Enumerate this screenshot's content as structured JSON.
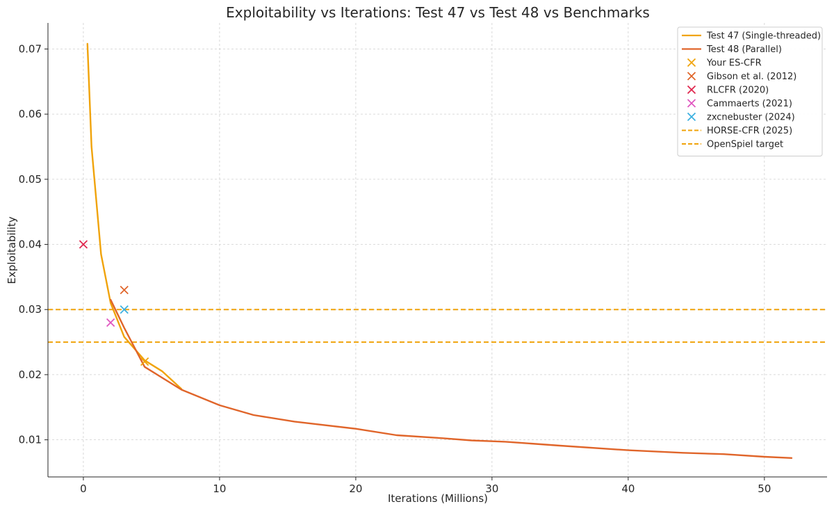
{
  "chart_data": {
    "type": "line",
    "title": "Exploitability vs Iterations: Test 47 vs Test 48 vs Benchmarks",
    "xlabel": "Iterations (Millions)",
    "ylabel": "Exploitability",
    "xlim": [
      -2.6,
      54.6
    ],
    "ylim": [
      0.0043,
      0.074
    ],
    "xticks": [
      0,
      10,
      20,
      30,
      40,
      50
    ],
    "yticks": [
      0.01,
      0.02,
      0.03,
      0.04,
      0.05,
      0.06,
      0.07
    ],
    "xtick_labels": [
      "0",
      "10",
      "20",
      "30",
      "40",
      "50"
    ],
    "ytick_labels": [
      "0.01",
      "0.02",
      "0.03",
      "0.04",
      "0.05",
      "0.06",
      "0.07"
    ],
    "grid": true,
    "legend_position": "top-right",
    "lines": [
      {
        "name": "Test 47 (Single-threaded)",
        "color": "#f0a30a",
        "x": [
          0.3,
          0.6,
          1.3,
          2.0,
          3.0,
          4.5,
          5.8,
          7.2
        ],
        "y": [
          0.0708,
          0.055,
          0.0385,
          0.031,
          0.0258,
          0.0222,
          0.0205,
          0.0178
        ]
      },
      {
        "name": "Test 48 (Parallel)",
        "color": "#e0652a",
        "x": [
          2.0,
          3.0,
          4.5,
          7.2,
          10.0,
          12.5,
          15.5,
          20.0,
          23.0,
          26.0,
          28.5,
          31.0,
          35.0,
          40.0,
          44.0,
          47.0,
          50.0,
          52.0
        ],
        "y": [
          0.0315,
          0.0272,
          0.0212,
          0.0177,
          0.0153,
          0.0138,
          0.0128,
          0.0117,
          0.0107,
          0.0103,
          0.0099,
          0.0097,
          0.0091,
          0.0084,
          0.008,
          0.0078,
          0.0074,
          0.0072
        ]
      }
    ],
    "markers": [
      {
        "name": "Your ES-CFR",
        "color": "#f0a30a",
        "x": 4.5,
        "y": 0.022
      },
      {
        "name": "Gibson et al. (2012)",
        "color": "#e0652a",
        "x": 3.0,
        "y": 0.033
      },
      {
        "name": "RLCFR (2020)",
        "color": "#e0284f",
        "x": 0.0,
        "y": 0.04
      },
      {
        "name": "Cammaerts (2021)",
        "color": "#e056c0",
        "x": 2.0,
        "y": 0.028
      },
      {
        "name": "zxcnebuster (2024)",
        "color": "#3bb0e0",
        "x": 3.0,
        "y": 0.03
      }
    ],
    "hlines": [
      {
        "name": "HORSE-CFR (2025)",
        "color": "#f0a30a",
        "y": 0.03
      },
      {
        "name": "OpenSpiel target",
        "color": "#f0a30a",
        "y": 0.025
      }
    ]
  }
}
